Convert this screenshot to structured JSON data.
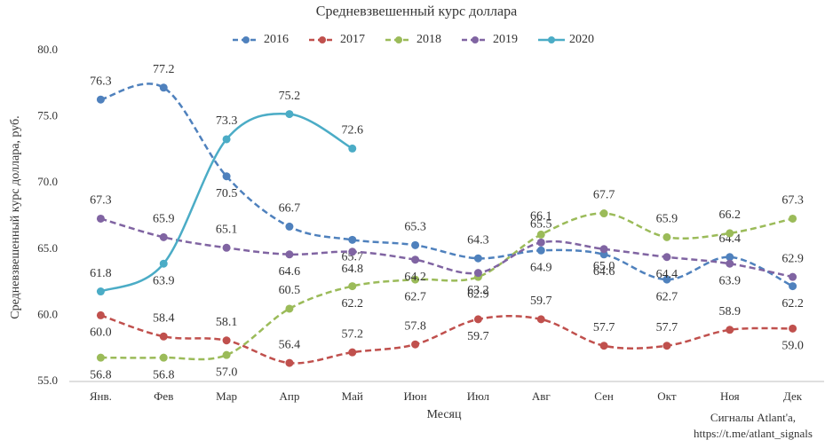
{
  "chart_data": {
    "type": "line",
    "title": "Средневзвешенный курс доллара",
    "x_label": "Месяц",
    "y_label": "Средневзвешенный курс доллара, руб.",
    "source": [
      "Сигналы Atlant'a,",
      "https://t.me/atlant_signals"
    ],
    "categories": [
      "Янв.",
      "Фев",
      "Мар",
      "Апр",
      "Май",
      "Июн",
      "Июл",
      "Авг",
      "Сен",
      "Окт",
      "Ноя",
      "Дек"
    ],
    "ylim": [
      55,
      80
    ],
    "yticks": [
      {
        "value": 55,
        "label": "55.0"
      },
      {
        "value": 60,
        "label": "60.0"
      },
      {
        "value": 65,
        "label": "65.0"
      },
      {
        "value": 70,
        "label": "70.0"
      },
      {
        "value": 75,
        "label": "75.0"
      },
      {
        "value": 80,
        "label": "80.0"
      }
    ],
    "smooth": true,
    "legend": "top",
    "series": [
      {
        "name": "2016",
        "color": "#4f81bd",
        "line_style": "dashed",
        "values": [
          76.3,
          77.2,
          70.5,
          66.7,
          65.7,
          65.3,
          64.3,
          64.9,
          64.6,
          62.7,
          64.4,
          62.2
        ],
        "value_labels": [
          "76.3",
          "77.2",
          "70.5",
          "66.7",
          "65.7",
          "65.3",
          "64.3",
          "64.9",
          "64.6",
          "62.7",
          "64.4",
          "62.2"
        ]
      },
      {
        "name": "2017",
        "color": "#c0504d",
        "line_style": "dashed",
        "values": [
          60.0,
          58.4,
          58.1,
          56.4,
          57.2,
          57.8,
          59.7,
          59.7,
          57.7,
          57.7,
          58.9,
          59.0
        ],
        "value_labels": [
          "60.0",
          "58.4",
          "58.1",
          "56.4",
          "57.2",
          "57.8",
          "59.7",
          "59.7",
          "57.7",
          "57.7",
          "58.9",
          "59.0"
        ]
      },
      {
        "name": "2018",
        "color": "#9bbb59",
        "line_style": "dashed",
        "values": [
          56.8,
          56.8,
          57.0,
          60.5,
          62.2,
          62.7,
          62.9,
          66.1,
          67.7,
          65.9,
          66.2,
          67.3
        ],
        "value_labels": [
          "56.8",
          "56.8",
          "57.0",
          "60.5",
          "62.2",
          "62.7",
          "62.9",
          "66.1",
          "67.7",
          "65.9",
          "66.2",
          "67.3"
        ]
      },
      {
        "name": "2019",
        "color": "#8064a2",
        "line_style": "dashed",
        "values": [
          67.3,
          65.9,
          65.1,
          64.6,
          64.8,
          64.2,
          63.2,
          65.5,
          65.0,
          64.4,
          63.9,
          62.9
        ],
        "value_labels": [
          "67.3",
          "65.9",
          "65.1",
          "64.6",
          "64.8",
          "64.2",
          "63.2",
          "65.5",
          "65.0",
          "64.4",
          "63.9",
          "62.9"
        ]
      },
      {
        "name": "2020",
        "color": "#4bacc6",
        "line_style": "solid",
        "values": [
          61.8,
          63.9,
          73.3,
          75.2,
          72.6,
          null,
          null,
          null,
          null,
          null,
          null,
          null
        ],
        "value_labels": [
          "61.8",
          "63.9",
          "73.3",
          "75.2",
          "72.6",
          null,
          null,
          null,
          null,
          null,
          null,
          null
        ]
      }
    ]
  }
}
